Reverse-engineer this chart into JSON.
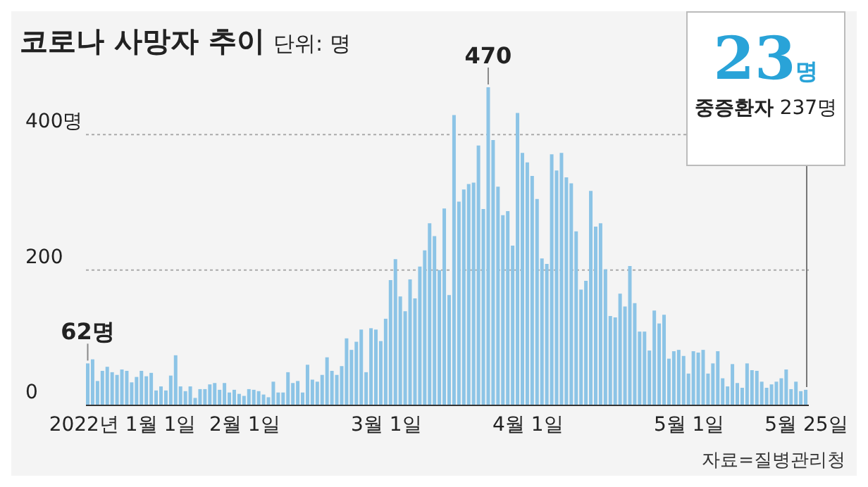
{
  "chart_data": {
    "type": "bar",
    "title": "코로나 사망자 추이",
    "subtitle": "단위: 명",
    "color": "#8cc4e6",
    "categories": [
      null,
      null,
      null,
      null,
      null,
      null,
      null,
      "2022년 1월 1일",
      null,
      null,
      null,
      null,
      null,
      null,
      null,
      null,
      null,
      null,
      null,
      null,
      null,
      null,
      null,
      null,
      null,
      null,
      null,
      null,
      null,
      null,
      null,
      null,
      "2월 1일",
      null,
      null,
      null,
      null,
      null,
      null,
      null,
      null,
      null,
      null,
      null,
      null,
      null,
      null,
      null,
      null,
      null,
      null,
      null,
      null,
      null,
      null,
      null,
      null,
      null,
      null,
      null,
      null,
      "3월 1일",
      null,
      null,
      null,
      null,
      null,
      null,
      null,
      null,
      null,
      null,
      null,
      null,
      null,
      null,
      null,
      null,
      null,
      null,
      null,
      null,
      null,
      null,
      null,
      null,
      null,
      null,
      null,
      null,
      "4월 1일",
      null,
      null,
      null,
      null,
      null,
      null,
      null,
      null,
      null,
      null,
      null,
      null,
      null,
      null,
      null,
      null,
      null,
      null,
      null,
      null,
      null,
      null,
      null,
      null,
      null,
      null,
      null,
      null,
      null,
      null,
      null,
      null,
      "5월 1일",
      null,
      null,
      null,
      null,
      null,
      null,
      null,
      null,
      null,
      null,
      null,
      null,
      null,
      null,
      null,
      null,
      null,
      null,
      null,
      null,
      null,
      null,
      null,
      "5월 25일"
    ],
    "values": [
      62,
      68,
      36,
      51,
      57,
      49,
      45,
      53,
      51,
      34,
      42,
      51,
      43,
      48,
      22,
      28,
      22,
      44,
      74,
      28,
      21,
      28,
      11,
      24,
      24,
      31,
      33,
      23,
      33,
      19,
      23,
      17,
      14,
      24,
      23,
      21,
      16,
      12,
      35,
      19,
      19,
      49,
      33,
      36,
      19,
      60,
      38,
      35,
      45,
      71,
      51,
      45,
      58,
      99,
      82,
      94,
      112,
      49,
      114,
      112,
      95,
      128,
      185,
      216,
      161,
      139,
      186,
      158,
      205,
      229,
      269,
      250,
      200,
      291,
      163,
      429,
      301,
      319,
      327,
      329,
      384,
      290,
      470,
      392,
      323,
      281,
      287,
      236,
      432,
      373,
      359,
      339,
      305,
      217,
      209,
      371,
      347,
      373,
      337,
      328,
      257,
      171,
      184,
      317,
      264,
      269,
      201,
      132,
      130,
      165,
      146,
      206,
      151,
      109,
      109,
      81,
      140,
      121,
      134,
      69,
      80,
      82,
      73,
      47,
      80,
      78,
      82,
      47,
      62,
      80,
      40,
      28,
      61,
      33,
      26,
      62,
      52,
      51,
      35,
      26,
      31,
      35,
      40,
      53,
      24,
      35,
      21,
      23
    ],
    "value_labels": [
      "62명",
      null,
      null,
      null,
      null,
      null,
      null,
      null,
      null,
      null,
      null,
      null,
      null,
      null,
      null,
      null,
      null,
      null,
      null,
      null,
      null,
      null,
      null,
      null,
      null,
      null,
      null,
      null,
      null,
      null,
      null,
      null,
      null,
      null,
      null,
      null,
      null,
      null,
      null,
      null,
      null,
      null,
      null,
      null,
      null,
      null,
      null,
      null,
      null,
      null,
      null,
      null,
      null,
      null,
      null,
      null,
      null,
      null,
      null,
      null,
      null,
      null,
      null,
      null,
      null,
      null,
      null,
      null,
      null,
      null,
      null,
      null,
      null,
      null,
      null,
      null,
      null,
      null,
      null,
      null,
      null,
      null,
      "470",
      null,
      null,
      null,
      null,
      null,
      null,
      null,
      null,
      null,
      null,
      null,
      null,
      null,
      null,
      null,
      null,
      null,
      null,
      null,
      null,
      null,
      null,
      null,
      null,
      null,
      null,
      null,
      null,
      null,
      null,
      null,
      null,
      null,
      null,
      null,
      null,
      null,
      null,
      null,
      null,
      null,
      null,
      null,
      null,
      null,
      null,
      null,
      null,
      null,
      null,
      null,
      null,
      null,
      null,
      null,
      null,
      null,
      null,
      null,
      null,
      null,
      null,
      null,
      null,
      null
    ],
    "ylim": [
      0,
      470
    ],
    "yticks": [
      0,
      200,
      {
        "value": 400,
        "label": "400명"
      }
    ],
    "grid": "y",
    "annotations": [
      "23명",
      "중증환자 237명",
      "자료=질병관리청"
    ]
  }
}
